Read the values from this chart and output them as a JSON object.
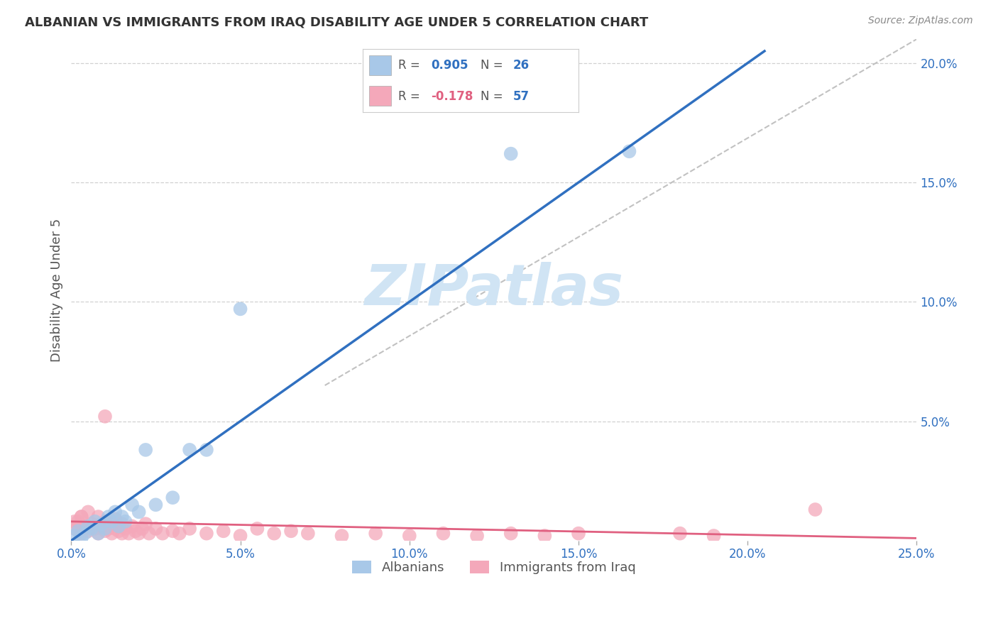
{
  "title": "ALBANIAN VS IMMIGRANTS FROM IRAQ DISABILITY AGE UNDER 5 CORRELATION CHART",
  "source": "Source: ZipAtlas.com",
  "ylabel": "Disability Age Under 5",
  "xlim": [
    0.0,
    0.25
  ],
  "ylim": [
    0.0,
    0.21
  ],
  "albanian_R": 0.905,
  "albanian_N": 26,
  "iraq_R": -0.178,
  "iraq_N": 57,
  "albanian_color": "#a8c8e8",
  "iraq_color": "#f4a8ba",
  "albanian_line_color": "#3070c0",
  "iraq_line_color": "#e06080",
  "ref_line_color": "#bbbbbb",
  "background_color": "#ffffff",
  "grid_color": "#cccccc",
  "watermark_text": "ZIPatlas",
  "watermark_color": "#d0e4f4",
  "title_color": "#333333",
  "source_color": "#888888",
  "tick_color": "#3070c0",
  "legend_text_color": "#555555",
  "legend_R_color": "#3070c0",
  "legend_R_neg_color": "#e06080",
  "legend_N_color": "#3070c0",
  "albanian_x": [
    0.001,
    0.002,
    0.003,
    0.004,
    0.005,
    0.006,
    0.007,
    0.008,
    0.009,
    0.01,
    0.011,
    0.012,
    0.013,
    0.014,
    0.015,
    0.016,
    0.018,
    0.02,
    0.022,
    0.025,
    0.03,
    0.035,
    0.04,
    0.05,
    0.13,
    0.165
  ],
  "albanian_y": [
    0.002,
    0.004,
    0.001,
    0.003,
    0.006,
    0.005,
    0.008,
    0.003,
    0.007,
    0.005,
    0.01,
    0.008,
    0.012,
    0.006,
    0.01,
    0.008,
    0.015,
    0.012,
    0.038,
    0.015,
    0.018,
    0.038,
    0.038,
    0.097,
    0.162,
    0.163
  ],
  "iraq_x": [
    0.001,
    0.002,
    0.003,
    0.003,
    0.004,
    0.005,
    0.005,
    0.006,
    0.007,
    0.008,
    0.008,
    0.009,
    0.01,
    0.01,
    0.01,
    0.011,
    0.012,
    0.012,
    0.013,
    0.013,
    0.014,
    0.015,
    0.015,
    0.016,
    0.017,
    0.018,
    0.019,
    0.02,
    0.021,
    0.022,
    0.023,
    0.025,
    0.027,
    0.03,
    0.032,
    0.035,
    0.04,
    0.045,
    0.05,
    0.055,
    0.06,
    0.065,
    0.07,
    0.08,
    0.09,
    0.1,
    0.11,
    0.12,
    0.13,
    0.14,
    0.15,
    0.18,
    0.19,
    0.22,
    0.001,
    0.002,
    0.003
  ],
  "iraq_y": [
    0.005,
    0.008,
    0.003,
    0.01,
    0.006,
    0.004,
    0.012,
    0.007,
    0.005,
    0.003,
    0.01,
    0.006,
    0.004,
    0.008,
    0.052,
    0.005,
    0.003,
    0.007,
    0.005,
    0.009,
    0.004,
    0.003,
    0.007,
    0.005,
    0.003,
    0.006,
    0.004,
    0.003,
    0.005,
    0.007,
    0.003,
    0.005,
    0.003,
    0.004,
    0.003,
    0.005,
    0.003,
    0.004,
    0.002,
    0.005,
    0.003,
    0.004,
    0.003,
    0.002,
    0.003,
    0.002,
    0.003,
    0.002,
    0.003,
    0.002,
    0.003,
    0.003,
    0.002,
    0.013,
    0.008,
    0.006,
    0.01
  ],
  "alb_line_x": [
    0.0,
    0.205
  ],
  "alb_line_y": [
    0.0,
    0.205
  ],
  "iraq_line_x": [
    0.0,
    0.25
  ],
  "iraq_line_y": [
    0.008,
    0.001
  ],
  "ref_line_x": [
    0.075,
    0.25
  ],
  "ref_line_y": [
    0.065,
    0.21
  ]
}
